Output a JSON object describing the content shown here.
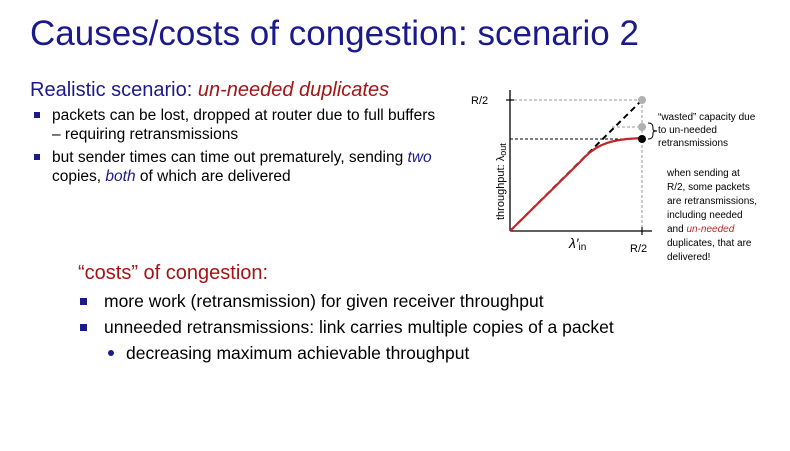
{
  "title": "Causes/costs of congestion: scenario 2",
  "subtitle": {
    "prefix": "Realistic scenario: ",
    "highlight": "un-needed duplicates"
  },
  "bullets": [
    {
      "text": "packets can be lost, dropped at router due  to full buffers – requiring retransmissions"
    },
    {
      "pre": "but sender times can time out prematurely, sending ",
      "em1": "two",
      "mid": " copies, ",
      "em2": "both",
      "post": " of which are delivered"
    }
  ],
  "diagram": {
    "y_tick": "R/2",
    "x_tick": "R/2",
    "y_label": "throughput: λ",
    "y_label_sub": "out",
    "x_label": "λ′",
    "x_label_sub": "in",
    "wasted_note": [
      "“wasted” capacity due",
      "to un-needed",
      "retransmissions"
    ],
    "note_lines": [
      "when sending at",
      "R/2, some packets",
      "are retransmissions,",
      "including needed",
      "and ",
      "duplicates, that are",
      "delivered!"
    ],
    "note_emph": "un-needed",
    "colors": {
      "curve": "#c0272d",
      "dashed": "#000000",
      "guide": "#9a9a9a",
      "point_grey": "#b0b0b0"
    }
  },
  "costs": {
    "title": "“costs” of congestion:",
    "items": [
      "more work (retransmission) for given receiver throughput",
      "unneeded retransmissions: link carries multiple copies of a packet"
    ],
    "sub": "decreasing maximum achievable throughput"
  }
}
